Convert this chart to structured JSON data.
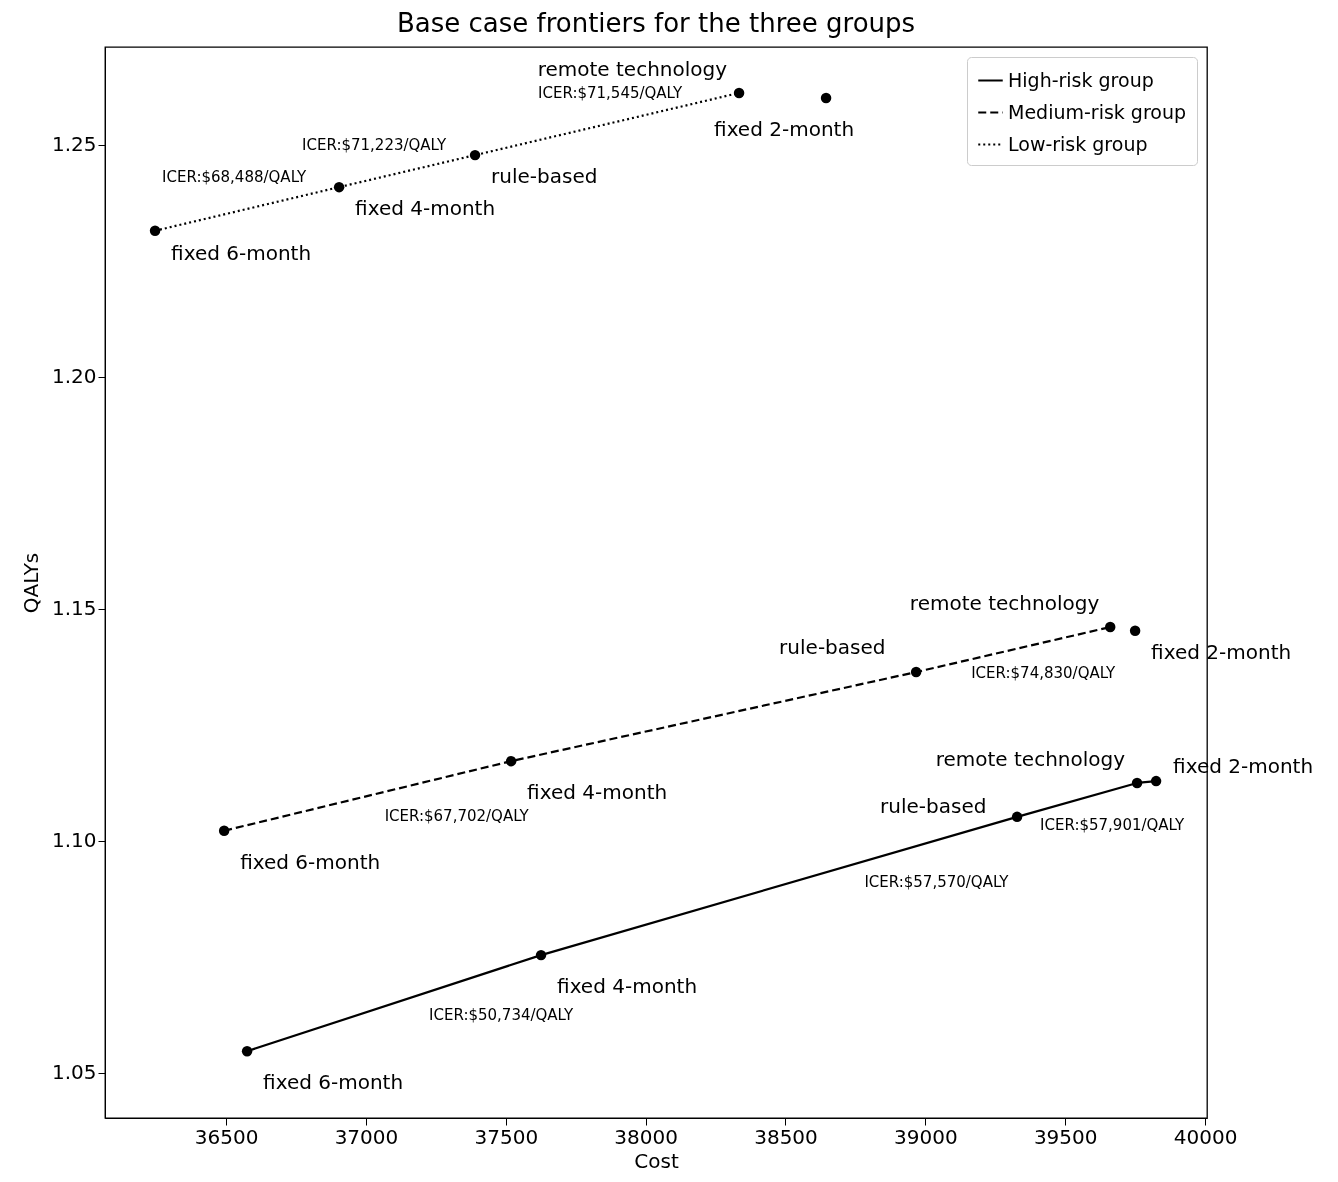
{
  "chart_data": {
    "type": "line",
    "title": "Base case frontiers for the three groups",
    "xlabel": "Cost",
    "ylabel": "QALYs",
    "xlim": [
      36067,
      40007
    ],
    "ylim": [
      1.0403,
      1.2711
    ],
    "xticks": [
      36500,
      37000,
      37500,
      38000,
      38500,
      39000,
      39500,
      40000
    ],
    "yticks": [
      {
        "value": 1.05,
        "label": "1.05"
      },
      {
        "value": 1.1,
        "label": "1.10"
      },
      {
        "value": 1.15,
        "label": "1.15"
      },
      {
        "value": 1.2,
        "label": "1.20"
      },
      {
        "value": 1.25,
        "label": "1.25"
      }
    ],
    "grid": false,
    "legend": "top right",
    "marker": "circle",
    "series": [
      {
        "name": "High-risk group",
        "type": "line",
        "line_style": "solid",
        "color": "#000000",
        "x": [
          36575,
          37626,
          39328,
          39757,
          39825
        ],
        "values": [
          1.0547,
          1.0754,
          1.1052,
          1.1125,
          1.1129
        ]
      },
      {
        "name": "Medium-risk group",
        "type": "line",
        "line_style": "dashed",
        "color": "#000000",
        "x": [
          36493,
          37519,
          38967,
          39661
        ],
        "values": [
          1.1022,
          1.1172,
          1.1364,
          1.1461
        ]
      },
      {
        "name": "Low-risk group",
        "type": "line",
        "line_style": "dotted",
        "color": "#000000",
        "x": [
          36246,
          36904,
          37390,
          38334
        ],
        "values": [
          1.2315,
          1.2409,
          1.2478,
          1.2612
        ]
      },
      {
        "type": "scatter",
        "color": "#000000",
        "x": [
          38645,
          39750
        ],
        "values": [
          1.2601,
          1.1453
        ]
      }
    ],
    "annotations": [
      {
        "text": "fixed 6-month",
        "x": 36246,
        "y": 1.2315
      },
      {
        "text": "fixed 4-month",
        "x": 36904,
        "y": 1.2409
      },
      {
        "text": "rule-based",
        "x": 37390,
        "y": 1.2478
      },
      {
        "text": "remote technology",
        "x": 38334,
        "y": 1.2612
      },
      {
        "text": "fixed 2-month",
        "x": 38645,
        "y": 1.2601
      },
      {
        "text": "ICER:$68,488/QALY",
        "x": 36575,
        "y": 1.2362
      },
      {
        "text": "ICER:$71,223/QALY",
        "x": 37147,
        "y": 1.24435
      },
      {
        "text": "ICER:$71,545/QALY",
        "x": 37862,
        "y": 1.2545
      },
      {
        "text": "fixed 6-month",
        "x": 36493,
        "y": 1.1022
      },
      {
        "text": "fixed 4-month",
        "x": 37519,
        "y": 1.1172
      },
      {
        "text": "rule-based",
        "x": 38967,
        "y": 1.1364
      },
      {
        "text": "remote technology",
        "x": 39661,
        "y": 1.1461
      },
      {
        "text": "fixed 2-month",
        "x": 39750,
        "y": 1.1453
      },
      {
        "text": "ICER:$67,702/QALY",
        "x": 37006,
        "y": 1.1097
      },
      {
        "text": "ICER:$74,830/QALY",
        "x": 39314,
        "y": 1.14125
      },
      {
        "text": "fixed 6-month",
        "x": 36575,
        "y": 1.0547
      },
      {
        "text": "fixed 4-month",
        "x": 37626,
        "y": 1.0754
      },
      {
        "text": "rule-based",
        "x": 39328,
        "y": 1.1052
      },
      {
        "text": "remote technology",
        "x": 39757,
        "y": 1.1125
      },
      {
        "text": "fixed 2-month",
        "x": 39825,
        "y": 1.1129
      },
      {
        "text": "ICER:$50,734/QALY",
        "x": 37100.5,
        "y": 1.06505
      },
      {
        "text": "ICER:$57,570/QALY",
        "x": 38900,
        "y": 1.0977
      },
      {
        "text": "ICER:$57,901/QALY",
        "x": 39542.5,
        "y": 1.10885
      }
    ]
  }
}
